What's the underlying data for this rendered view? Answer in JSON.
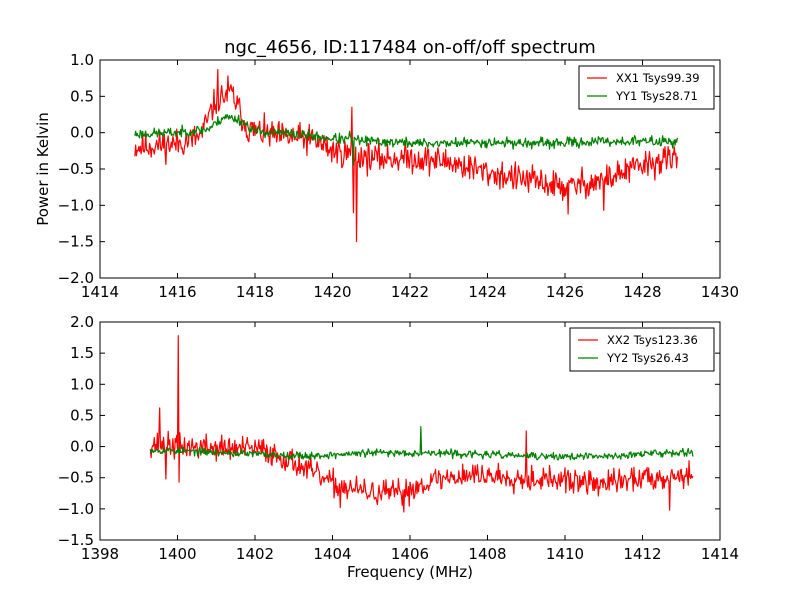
{
  "chart_data": [
    {
      "type": "line",
      "title": "ngc_4656, ID:117484 on-off/off spectrum",
      "xlabel": "",
      "ylabel": "Power in Kelvin",
      "xlim": [
        1414,
        1430
      ],
      "ylim": [
        -2.0,
        1.0
      ],
      "xticks": [
        "1414",
        "1416",
        "1418",
        "1420",
        "1422",
        "1424",
        "1426",
        "1428",
        "1430"
      ],
      "yticks": [
        "1.0",
        "0.5",
        "0.0",
        "−0.5",
        "−1.0",
        "−1.5",
        "−2.0"
      ],
      "legend_position": "top-right",
      "grid": false,
      "x_range": [
        1414.9,
        1428.9
      ],
      "series": [
        {
          "name": "XX1 Tsys99.39",
          "color": "#ff0000",
          "seed": 11,
          "noise": 0.1,
          "baseline": [
            [
              1414.9,
              -0.2
            ],
            [
              1416.0,
              -0.15
            ],
            [
              1416.6,
              -0.05
            ],
            [
              1417.0,
              0.45
            ],
            [
              1417.4,
              0.55
            ],
            [
              1417.8,
              0.05
            ],
            [
              1418.5,
              -0.05
            ],
            [
              1419.5,
              -0.1
            ],
            [
              1420.0,
              -0.25
            ],
            [
              1420.5,
              -0.3
            ],
            [
              1421.0,
              -0.35
            ],
            [
              1422.0,
              -0.35
            ],
            [
              1423.0,
              -0.4
            ],
            [
              1424.0,
              -0.55
            ],
            [
              1425.0,
              -0.65
            ],
            [
              1426.0,
              -0.75
            ],
            [
              1427.0,
              -0.65
            ],
            [
              1428.0,
              -0.45
            ],
            [
              1428.9,
              -0.35
            ]
          ],
          "spikes": [
            [
              1417.05,
              0.87
            ],
            [
              1417.3,
              0.78
            ],
            [
              1420.5,
              0.35
            ],
            [
              1420.55,
              -1.1
            ],
            [
              1420.62,
              -1.5
            ],
            [
              1426.08,
              -1.12
            ],
            [
              1427.0,
              -1.07
            ]
          ]
        },
        {
          "name": "YY1 Tsys28.71",
          "color": "#008000",
          "seed": 23,
          "noise": 0.035,
          "baseline": [
            [
              1414.9,
              -0.02
            ],
            [
              1416.0,
              0.0
            ],
            [
              1416.8,
              0.05
            ],
            [
              1417.2,
              0.22
            ],
            [
              1417.6,
              0.18
            ],
            [
              1418.0,
              0.02
            ],
            [
              1419.0,
              -0.02
            ],
            [
              1420.0,
              -0.08
            ],
            [
              1421.0,
              -0.12
            ],
            [
              1422.5,
              -0.15
            ],
            [
              1424.0,
              -0.13
            ],
            [
              1425.5,
              -0.15
            ],
            [
              1427.0,
              -0.12
            ],
            [
              1428.9,
              -0.12
            ]
          ],
          "spikes": [
            [
              1420.45,
              0.02
            ],
            [
              1420.55,
              -0.45
            ]
          ]
        }
      ]
    },
    {
      "type": "line",
      "title": "",
      "xlabel": "Frequency (MHz)",
      "ylabel": "",
      "xlim": [
        1398,
        1414
      ],
      "ylim": [
        -1.5,
        2.0
      ],
      "xticks": [
        "1398",
        "1400",
        "1402",
        "1404",
        "1406",
        "1408",
        "1410",
        "1412",
        "1414"
      ],
      "yticks": [
        "2.0",
        "1.5",
        "1.0",
        "0.5",
        "0.0",
        "−0.5",
        "−1.0",
        "−1.5"
      ],
      "legend_position": "top-right",
      "grid": false,
      "x_range": [
        1399.3,
        1413.3
      ],
      "series": [
        {
          "name": "XX2 Tsys123.36",
          "color": "#ff0000",
          "seed": 37,
          "noise": 0.1,
          "baseline": [
            [
              1399.3,
              0.05
            ],
            [
              1400.0,
              0.0
            ],
            [
              1401.0,
              -0.02
            ],
            [
              1402.2,
              -0.05
            ],
            [
              1403.0,
              -0.25
            ],
            [
              1404.0,
              -0.6
            ],
            [
              1405.0,
              -0.75
            ],
            [
              1405.8,
              -0.75
            ],
            [
              1406.5,
              -0.55
            ],
            [
              1407.5,
              -0.45
            ],
            [
              1409.0,
              -0.5
            ],
            [
              1410.0,
              -0.55
            ],
            [
              1411.0,
              -0.6
            ],
            [
              1412.0,
              -0.5
            ],
            [
              1413.3,
              -0.45
            ]
          ],
          "spikes": [
            [
              1400.02,
              1.78
            ],
            [
              1399.55,
              0.62
            ],
            [
              1399.7,
              -0.52
            ],
            [
              1400.05,
              -0.57
            ],
            [
              1404.2,
              -0.98
            ],
            [
              1405.85,
              -1.05
            ],
            [
              1409.0,
              0.25
            ],
            [
              1412.7,
              -1.02
            ]
          ]
        },
        {
          "name": "YY2 Tsys26.43",
          "color": "#008000",
          "seed": 53,
          "noise": 0.03,
          "baseline": [
            [
              1399.3,
              -0.05
            ],
            [
              1400.5,
              -0.08
            ],
            [
              1402.0,
              -0.12
            ],
            [
              1403.5,
              -0.15
            ],
            [
              1405.0,
              -0.1
            ],
            [
              1406.5,
              -0.1
            ],
            [
              1408.0,
              -0.13
            ],
            [
              1409.5,
              -0.16
            ],
            [
              1411.0,
              -0.16
            ],
            [
              1412.5,
              -0.1
            ],
            [
              1413.3,
              -0.08
            ]
          ],
          "spikes": [
            [
              1406.28,
              0.32
            ]
          ]
        }
      ]
    }
  ]
}
